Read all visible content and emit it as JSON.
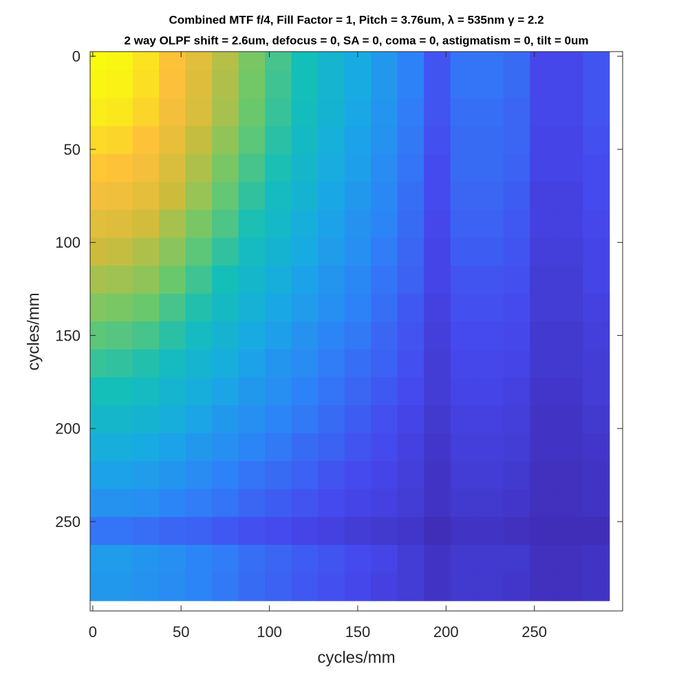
{
  "chart_data": {
    "type": "heatmap",
    "title": "Combined MTF f/4, Fill Factor = 1, Pitch = 3.76um, λ = 535nm γ = 2.2",
    "subtitle": "2 way OLPF shift = 2.6um, defocus = 0, SA = 0, coma = 0, astigmatism = 0, tilt = 0um",
    "xlabel": "cycles/mm",
    "ylabel": "cycles/mm",
    "colormap": "parula",
    "y_reversed": true,
    "xlim": [
      -1.5,
      300
    ],
    "ylim": [
      -2.5,
      298
    ],
    "xticks": [
      0,
      50,
      100,
      150,
      200,
      250
    ],
    "yticks": [
      0,
      50,
      100,
      150,
      200,
      250
    ],
    "x": [
      0,
      15,
      30,
      45,
      60,
      75,
      90,
      105,
      120,
      135,
      150,
      165,
      180,
      195,
      210,
      225,
      240,
      255,
      270,
      285
    ],
    "y": [
      0,
      15,
      30,
      45,
      60,
      75,
      90,
      105,
      120,
      135,
      150,
      165,
      180,
      195,
      210,
      225,
      240,
      255,
      270,
      285
    ],
    "z": [
      [
        1.0,
        0.99,
        0.95,
        0.88,
        0.8,
        0.72,
        0.64,
        0.57,
        0.5,
        0.44,
        0.38,
        0.32,
        0.25,
        0.15,
        0.22,
        0.22,
        0.2,
        0.12,
        0.12,
        0.15
      ],
      [
        0.99,
        0.98,
        0.94,
        0.87,
        0.79,
        0.71,
        0.63,
        0.56,
        0.5,
        0.44,
        0.38,
        0.32,
        0.25,
        0.15,
        0.22,
        0.22,
        0.2,
        0.12,
        0.12,
        0.15
      ],
      [
        0.97,
        0.96,
        0.92,
        0.85,
        0.78,
        0.7,
        0.62,
        0.55,
        0.49,
        0.43,
        0.37,
        0.31,
        0.24,
        0.15,
        0.21,
        0.21,
        0.19,
        0.12,
        0.12,
        0.15
      ],
      [
        0.93,
        0.92,
        0.88,
        0.82,
        0.74,
        0.67,
        0.6,
        0.53,
        0.47,
        0.41,
        0.35,
        0.3,
        0.23,
        0.14,
        0.2,
        0.2,
        0.19,
        0.11,
        0.11,
        0.14
      ],
      [
        0.89,
        0.88,
        0.85,
        0.78,
        0.71,
        0.64,
        0.57,
        0.51,
        0.45,
        0.39,
        0.34,
        0.28,
        0.22,
        0.13,
        0.2,
        0.2,
        0.18,
        0.11,
        0.11,
        0.13
      ],
      [
        0.85,
        0.84,
        0.81,
        0.75,
        0.68,
        0.61,
        0.54,
        0.48,
        0.43,
        0.37,
        0.32,
        0.27,
        0.21,
        0.13,
        0.19,
        0.19,
        0.17,
        0.1,
        0.1,
        0.13
      ],
      [
        0.8,
        0.79,
        0.76,
        0.7,
        0.64,
        0.58,
        0.51,
        0.46,
        0.4,
        0.35,
        0.3,
        0.26,
        0.2,
        0.12,
        0.18,
        0.18,
        0.16,
        0.1,
        0.1,
        0.12
      ],
      [
        0.75,
        0.74,
        0.71,
        0.66,
        0.6,
        0.54,
        0.48,
        0.43,
        0.38,
        0.33,
        0.29,
        0.24,
        0.19,
        0.11,
        0.17,
        0.17,
        0.15,
        0.09,
        0.09,
        0.11
      ],
      [
        0.7,
        0.69,
        0.67,
        0.62,
        0.56,
        0.5,
        0.45,
        0.4,
        0.35,
        0.31,
        0.27,
        0.22,
        0.18,
        0.11,
        0.15,
        0.15,
        0.14,
        0.08,
        0.08,
        0.11
      ],
      [
        0.65,
        0.64,
        0.62,
        0.57,
        0.52,
        0.47,
        0.42,
        0.37,
        0.33,
        0.29,
        0.25,
        0.21,
        0.16,
        0.1,
        0.14,
        0.14,
        0.13,
        0.08,
        0.08,
        0.1
      ],
      [
        0.6,
        0.59,
        0.57,
        0.53,
        0.48,
        0.43,
        0.38,
        0.34,
        0.3,
        0.26,
        0.23,
        0.19,
        0.15,
        0.09,
        0.13,
        0.13,
        0.12,
        0.07,
        0.07,
        0.09
      ],
      [
        0.55,
        0.54,
        0.52,
        0.48,
        0.44,
        0.4,
        0.35,
        0.31,
        0.28,
        0.24,
        0.21,
        0.18,
        0.14,
        0.08,
        0.12,
        0.12,
        0.11,
        0.07,
        0.07,
        0.08
      ],
      [
        0.5,
        0.5,
        0.48,
        0.44,
        0.4,
        0.36,
        0.32,
        0.29,
        0.25,
        0.22,
        0.19,
        0.16,
        0.13,
        0.08,
        0.11,
        0.11,
        0.1,
        0.06,
        0.06,
        0.08
      ],
      [
        0.45,
        0.45,
        0.43,
        0.4,
        0.36,
        0.32,
        0.29,
        0.26,
        0.23,
        0.2,
        0.17,
        0.14,
        0.11,
        0.07,
        0.1,
        0.1,
        0.09,
        0.05,
        0.05,
        0.07
      ],
      [
        0.4,
        0.4,
        0.38,
        0.35,
        0.32,
        0.29,
        0.26,
        0.23,
        0.2,
        0.18,
        0.15,
        0.13,
        0.1,
        0.06,
        0.09,
        0.09,
        0.08,
        0.05,
        0.05,
        0.06
      ],
      [
        0.35,
        0.35,
        0.33,
        0.31,
        0.28,
        0.25,
        0.22,
        0.2,
        0.18,
        0.15,
        0.13,
        0.11,
        0.09,
        0.05,
        0.08,
        0.08,
        0.07,
        0.04,
        0.04,
        0.05
      ],
      [
        0.3,
        0.3,
        0.29,
        0.26,
        0.24,
        0.22,
        0.19,
        0.17,
        0.15,
        0.13,
        0.11,
        0.1,
        0.08,
        0.05,
        0.07,
        0.07,
        0.06,
        0.04,
        0.04,
        0.05
      ],
      [
        0.22,
        0.22,
        0.21,
        0.19,
        0.18,
        0.16,
        0.14,
        0.13,
        0.11,
        0.1,
        0.08,
        0.07,
        0.06,
        0.03,
        0.05,
        0.05,
        0.04,
        0.03,
        0.03,
        0.03
      ],
      [
        0.33,
        0.33,
        0.31,
        0.29,
        0.26,
        0.24,
        0.21,
        0.19,
        0.17,
        0.15,
        0.13,
        0.11,
        0.08,
        0.05,
        0.07,
        0.07,
        0.07,
        0.04,
        0.04,
        0.05
      ],
      [
        0.32,
        0.32,
        0.3,
        0.28,
        0.26,
        0.23,
        0.2,
        0.18,
        0.16,
        0.14,
        0.12,
        0.1,
        0.08,
        0.05,
        0.07,
        0.07,
        0.06,
        0.04,
        0.04,
        0.05
      ]
    ]
  }
}
